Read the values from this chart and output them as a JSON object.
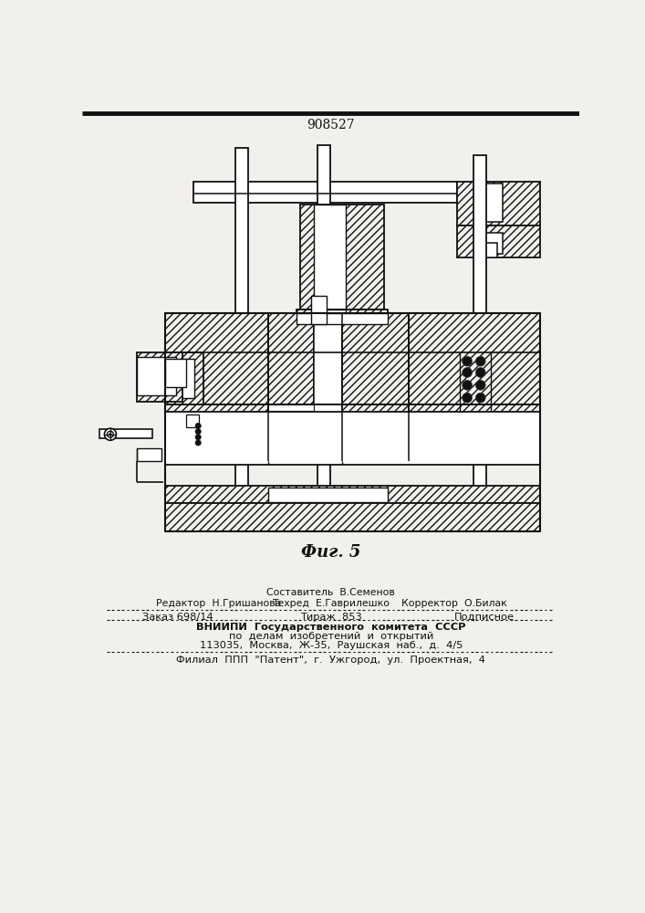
{
  "patent_number": "908527",
  "fig_label": "Фиг. 5",
  "bg_color": "#f2f0ec",
  "line_color": "#111111",
  "footer_sestavitel": "Составитель  В.Семенов",
  "footer_editor": "Редактор  Н.Гришанова",
  "footer_tekhred": "Техред  Е.Гаврилешко",
  "footer_korrektor": "Корректор  О.Билак",
  "footer_zakaz": "Заказ 698/14",
  "footer_tirazh": "Тираж  853",
  "footer_podpisnoe": "Подписное",
  "footer_vniipи": "ВНИИПИ  Государственного  комитета  СССР",
  "footer_line4": "по  делам  изобретений  и  открытий",
  "footer_line5": "113035,  Москва,  Ж-35,  Раушская  наб.,  д.  4/5",
  "footer_filial": "Филиал  ППП  \"Патент\",  г.  Ужгород,  ул.  Проектная,  4"
}
